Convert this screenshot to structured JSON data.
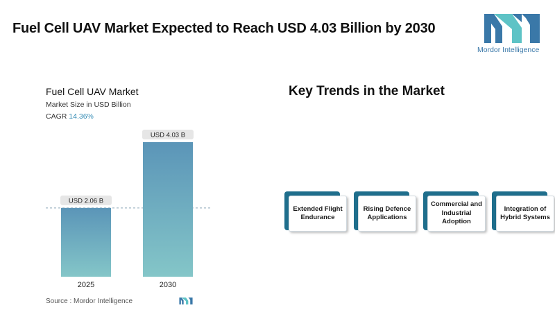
{
  "header": {
    "title": "Fuel Cell UAV Market Expected to Reach USD 4.03 Billion by 2030",
    "logo_text": "Mordor Intelligence"
  },
  "chart_heading": {
    "title": "Fuel Cell UAV Market",
    "subtitle": "Market Size in USD Billion",
    "cagr_label": "CAGR",
    "cagr_value": "14.36%"
  },
  "chart_data": {
    "type": "bar",
    "title": "Fuel Cell UAV Market",
    "ylabel": "Market Size in USD Billion",
    "categories": [
      "2025",
      "2030"
    ],
    "values": [
      2.06,
      4.03
    ],
    "data_labels": [
      "USD 2.06 B",
      "USD 4.03 B"
    ],
    "ylim": [
      0,
      4.03
    ],
    "reference_line": 2.06,
    "grid": false,
    "bar_color_top": "#5b95b8",
    "bar_color_bottom": "#84c6c8"
  },
  "trends": {
    "title": "Key Trends in the Market",
    "items": [
      {
        "label": "Extended Flight Endurance"
      },
      {
        "label": "Rising Defence Applications"
      },
      {
        "label": "Commercial and Industrial Adoption"
      },
      {
        "label": "Integration of Hybrid Systems"
      }
    ]
  },
  "footer": {
    "source": "Source :  Mordor Intelligence"
  },
  "colors": {
    "accent_dark": "#1f6e8c",
    "logo_blue": "#3a78a8",
    "logo_teal": "#5ec3c6"
  }
}
